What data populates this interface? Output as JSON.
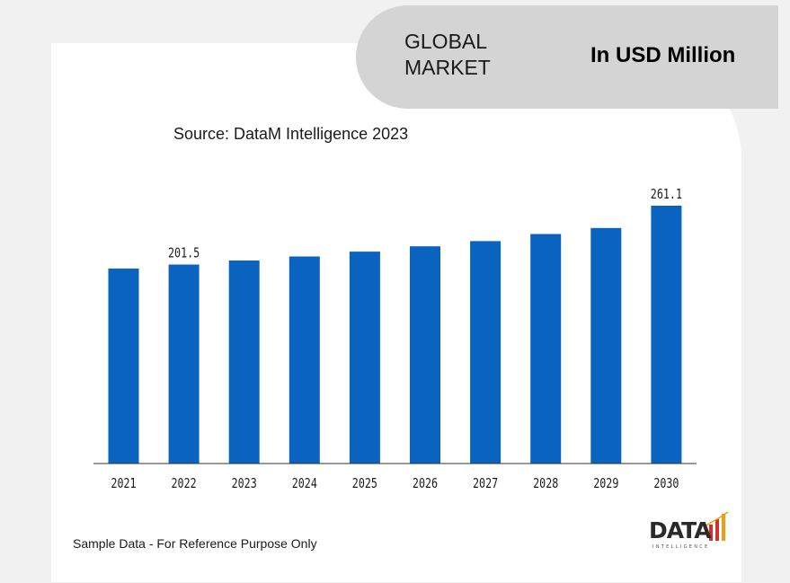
{
  "header": {
    "market_label": "GLOBAL\nMARKET",
    "unit_label": "In USD Million"
  },
  "source": "Source: DataM Intelligence 2023",
  "footer_note": "Sample Data - For Reference Purpose Only",
  "logo": {
    "text": "DATA",
    "subtext": "INTELLIGENCE"
  },
  "colors": {
    "bar": "#0a64bf",
    "header": "#d4d4d4",
    "accent_red": "#d0312d",
    "accent_orange": "#f39c12"
  },
  "chart_data": {
    "type": "bar",
    "categories": [
      "2021",
      "2022",
      "2023",
      "2024",
      "2025",
      "2026",
      "2027",
      "2028",
      "2029",
      "2030"
    ],
    "values": [
      197.5,
      201.5,
      205.6,
      209.7,
      214.6,
      220.0,
      225.3,
      232.4,
      238.5,
      261.1
    ],
    "data_labels": [
      {
        "category": "2022",
        "label": "201.5"
      },
      {
        "category": "2030",
        "label": "261.1"
      }
    ],
    "ylim": [
      0,
      270
    ],
    "grid": false,
    "legend": "none"
  }
}
